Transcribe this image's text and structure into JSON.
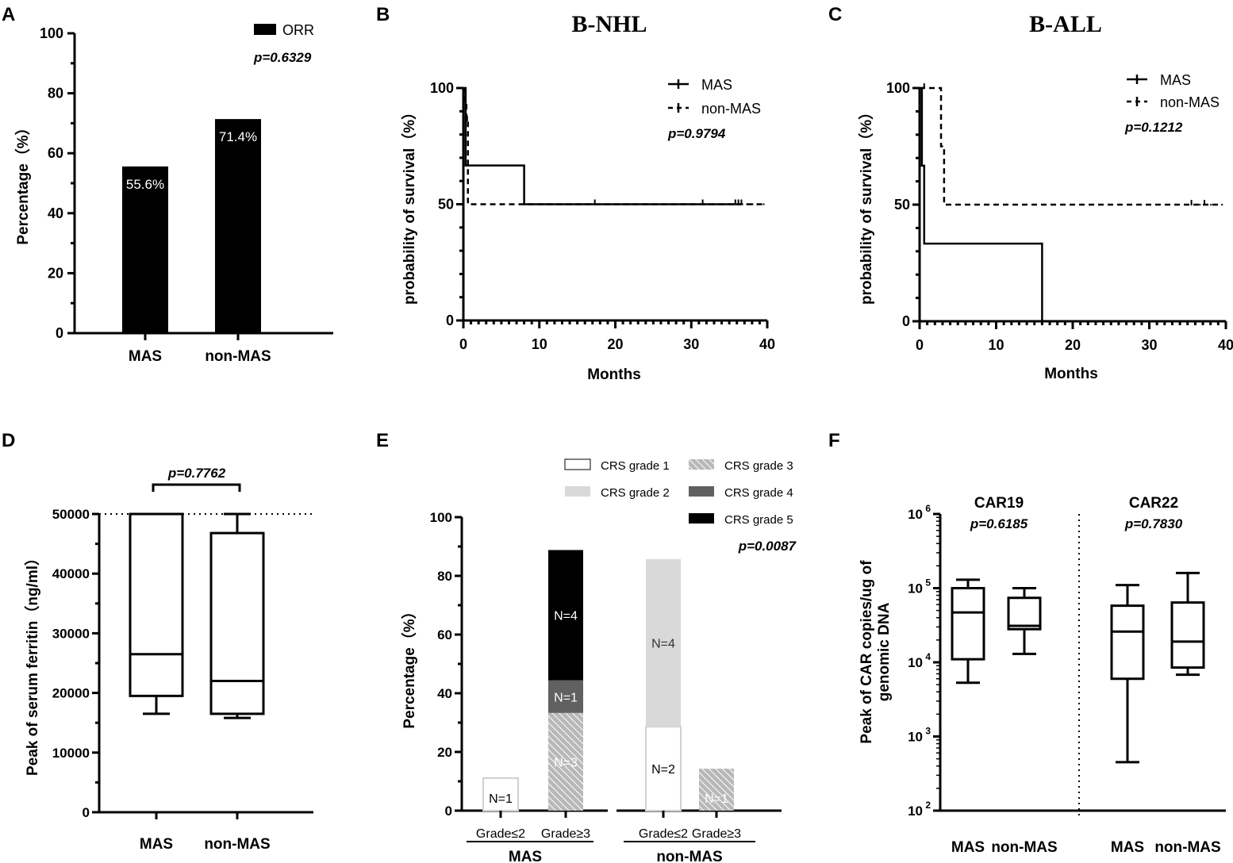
{
  "chart_data": [
    {
      "panel": "A",
      "type": "bar",
      "categories": [
        "MAS",
        "non-MAS"
      ],
      "values": [
        55.6,
        71.4
      ],
      "value_labels": [
        "55.6%",
        "71.4%"
      ],
      "legend": "ORR",
      "p_value": "p=0.6329",
      "ylabel": "Percentage（%）",
      "ylim": [
        0,
        100
      ],
      "yticks": [
        "0",
        "20",
        "40",
        "60",
        "80",
        "100"
      ],
      "color": "#000000"
    },
    {
      "panel": "B",
      "type": "line",
      "title": "B-NHL",
      "xlabel": "Months",
      "ylabel": "probability of survival（%）",
      "xlim": [
        0,
        40
      ],
      "ylim": [
        0,
        100
      ],
      "xticks": [
        "0",
        "10",
        "20",
        "30",
        "40"
      ],
      "yticks": [
        "0",
        "50",
        "100"
      ],
      "p_value": "p=0.9794",
      "series": [
        {
          "name": "MAS",
          "style": "solid",
          "x": [
            0,
            0.3,
            0.3,
            8,
            8,
            36.5
          ],
          "y": [
            100,
            100,
            66.7,
            66.7,
            50,
            50
          ],
          "censored_x": [
            17.3,
            31.5,
            35.8,
            36.2
          ]
        },
        {
          "name": "non-MAS",
          "style": "dashed",
          "x": [
            0,
            0.2,
            0.2,
            0.4,
            0.4,
            0.6,
            0.6,
            39.5
          ],
          "y": [
            100,
            100,
            94,
            94,
            86,
            86,
            50,
            50
          ],
          "censored_x": [
            0.3,
            0.5,
            36.6
          ]
        }
      ]
    },
    {
      "panel": "C",
      "type": "line",
      "title": "B-ALL",
      "xlabel": "Months",
      "ylabel": "probability of survival（%）",
      "xlim": [
        0,
        40
      ],
      "ylim": [
        0,
        100
      ],
      "xticks": [
        "0",
        "10",
        "20",
        "30",
        "40"
      ],
      "yticks": [
        "0",
        "50",
        "100"
      ],
      "p_value": "p=0.1212",
      "series": [
        {
          "name": "MAS",
          "style": "solid",
          "x": [
            0,
            0.3,
            0.3,
            0.6,
            0.6,
            16,
            16
          ],
          "y": [
            100,
            100,
            66.7,
            66.7,
            33.3,
            33.3,
            0
          ],
          "censored_x": []
        },
        {
          "name": "non-MAS",
          "style": "dashed",
          "x": [
            0,
            2.8,
            2.8,
            3.2,
            3.2,
            39.5
          ],
          "y": [
            100,
            100,
            75,
            75,
            50,
            50
          ],
          "censored_x": [
            0.6,
            35.5,
            37.2
          ]
        }
      ]
    },
    {
      "panel": "D",
      "type": "box",
      "categories": [
        "MAS",
        "non-MAS"
      ],
      "ylabel": "Peak of serum ferritin（ng/ml）",
      "ylim": [
        0,
        50000
      ],
      "yticks": [
        "0",
        "10000",
        "20000",
        "30000",
        "40000",
        "50000"
      ],
      "p_value": "p=0.7762",
      "reference_line": 50000,
      "boxes": [
        {
          "min": 16500,
          "q1": 19500,
          "median": 26500,
          "q3": 50000,
          "max": 50000
        },
        {
          "min": 15800,
          "q1": 16500,
          "median": 22000,
          "q3": 46800,
          "max": 50000
        }
      ]
    },
    {
      "panel": "E",
      "type": "bar",
      "stacked": true,
      "ylabel": "Percentage（%）",
      "ylim": [
        0,
        100
      ],
      "yticks": [
        "0",
        "20",
        "40",
        "60",
        "80",
        "100"
      ],
      "p_value": "p=0.0087",
      "categories": [
        "Grade≤2",
        "Grade≥3",
        "Grade≤2",
        "Grade≥3"
      ],
      "groups": [
        "MAS",
        "non-MAS"
      ],
      "legend": [
        "CRS grade 1",
        "CRS grade 2",
        "CRS grade 3",
        "CRS grade 4",
        "CRS grade 5"
      ],
      "series": [
        {
          "name": "CRS grade 1",
          "values": [
            11.1,
            0,
            28.6,
            0
          ]
        },
        {
          "name": "CRS grade 2",
          "values": [
            0,
            0,
            57.1,
            0
          ]
        },
        {
          "name": "CRS grade 3",
          "values": [
            0,
            33.3,
            0,
            14.3
          ]
        },
        {
          "name": "CRS grade 4",
          "values": [
            0,
            11.1,
            0,
            0
          ]
        },
        {
          "name": "CRS grade 5",
          "values": [
            0,
            44.4,
            0,
            0
          ]
        }
      ],
      "segment_labels": [
        {
          "bar": 0,
          "series": "CRS grade 1",
          "text": "N=1"
        },
        {
          "bar": 1,
          "series": "CRS grade 3",
          "text": "N=3"
        },
        {
          "bar": 1,
          "series": "CRS grade 4",
          "text": "N=1"
        },
        {
          "bar": 1,
          "series": "CRS grade 5",
          "text": "N=4"
        },
        {
          "bar": 2,
          "series": "CRS grade 1",
          "text": "N=2"
        },
        {
          "bar": 2,
          "series": "CRS grade 2",
          "text": "N=4"
        },
        {
          "bar": 3,
          "series": "CRS grade 3",
          "text": "N=1"
        }
      ]
    },
    {
      "panel": "F",
      "type": "box",
      "log_scale": true,
      "ylabel_lines": [
        "Peak of CAR copies/ug of",
        "genomic DNA"
      ],
      "ylim_exponent": [
        2,
        6
      ],
      "yticks_exponent": [
        "2",
        "3",
        "4",
        "5",
        "6"
      ],
      "tick_base": "10",
      "groups": [
        {
          "name": "CAR19",
          "p_value": "p=0.6185",
          "categories": [
            "MAS",
            "non-MAS"
          ],
          "boxes": [
            {
              "min": 5300,
              "q1": 11000,
              "median": 47000,
              "q3": 100000,
              "max": 130000
            },
            {
              "min": 13000,
              "q1": 28000,
              "median": 31000,
              "q3": 74000,
              "max": 100000
            }
          ]
        },
        {
          "name": "CAR22",
          "p_value": "p=0.7830",
          "categories": [
            "MAS",
            "non-MAS"
          ],
          "boxes": [
            {
              "min": 450,
              "q1": 6000,
              "median": 26000,
              "q3": 58000,
              "max": 110000
            },
            {
              "min": 6800,
              "q1": 8500,
              "median": 19000,
              "q3": 64000,
              "max": 160000
            }
          ]
        }
      ]
    }
  ],
  "panels": [
    "A",
    "B",
    "C",
    "D",
    "E",
    "F"
  ]
}
